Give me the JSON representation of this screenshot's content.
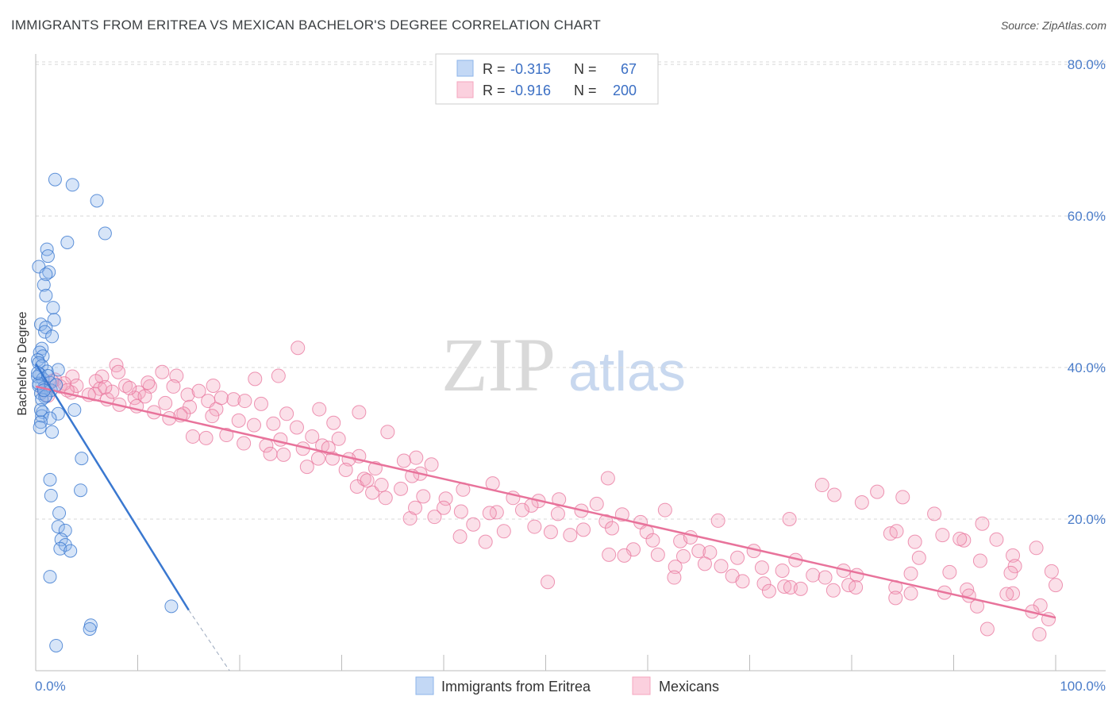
{
  "title": "IMMIGRANTS FROM ERITREA VS MEXICAN BACHELOR'S DEGREE CORRELATION CHART",
  "source": "Source: ZipAtlas.com",
  "watermark": {
    "zip": "ZIP",
    "atlas": "atlas"
  },
  "colors": {
    "blue": "#8db4ea",
    "blue_line": "#3a78d0",
    "pink": "#f4a6bf",
    "pink_line": "#e8739b",
    "tick": "#4a7cc9",
    "grid": "#d8d8d8"
  },
  "legend": {
    "rows": [
      {
        "r_label": "R =",
        "r_value": "-0.315",
        "n_label": "N =",
        "n_value": "67"
      },
      {
        "r_label": "R =",
        "r_value": "-0.916",
        "n_label": "N =",
        "n_value": "200"
      }
    ]
  },
  "chart_data": {
    "type": "scatter",
    "title": "IMMIGRANTS FROM ERITREA VS MEXICAN BACHELOR'S DEGREE CORRELATION CHART",
    "xlabel": "",
    "ylabel": "Bachelor's Degree",
    "xlim": [
      0,
      100
    ],
    "ylim": [
      0,
      82
    ],
    "x_tick_labels": [
      "0.0%",
      "100.0%"
    ],
    "y_ticks": [
      20,
      40,
      60,
      80
    ],
    "y_tick_labels": [
      "20.0%",
      "40.0%",
      "60.0%",
      "80.0%"
    ],
    "grid": true,
    "legend_position": "top-center",
    "series": [
      {
        "name": "Immigrants from Eritrea",
        "color": "#8db4ea",
        "R": -0.315,
        "N": 67,
        "trend": {
          "x": [
            0,
            15
          ],
          "y": [
            40.5,
            8.0
          ]
        },
        "trend_dashed": {
          "x": [
            15,
            19
          ],
          "y": [
            8.0,
            0
          ]
        },
        "points": [
          [
            1.9,
            64.8
          ],
          [
            3.6,
            64.1
          ],
          [
            6.0,
            62.0
          ],
          [
            6.8,
            57.7
          ],
          [
            3.1,
            56.5
          ],
          [
            1.1,
            55.6
          ],
          [
            1.2,
            54.7
          ],
          [
            0.3,
            53.3
          ],
          [
            1.3,
            52.6
          ],
          [
            1.0,
            52.3
          ],
          [
            0.8,
            50.9
          ],
          [
            1.0,
            49.5
          ],
          [
            1.7,
            47.9
          ],
          [
            1.8,
            46.3
          ],
          [
            0.5,
            45.7
          ],
          [
            1.0,
            45.3
          ],
          [
            0.9,
            44.7
          ],
          [
            1.6,
            44.1
          ],
          [
            0.6,
            42.5
          ],
          [
            0.4,
            42.0
          ],
          [
            0.7,
            41.5
          ],
          [
            0.2,
            41.0
          ],
          [
            0.3,
            40.6
          ],
          [
            0.6,
            40.2
          ],
          [
            2.2,
            39.7
          ],
          [
            1.1,
            39.5
          ],
          [
            0.4,
            39.1
          ],
          [
            0.2,
            38.8
          ],
          [
            0.7,
            38.5
          ],
          [
            1.4,
            38.0
          ],
          [
            0.3,
            37.6
          ],
          [
            0.8,
            37.3
          ],
          [
            1.5,
            37.0
          ],
          [
            0.5,
            36.6
          ],
          [
            0.9,
            36.1
          ],
          [
            0.6,
            35.8
          ],
          [
            3.8,
            34.4
          ],
          [
            0.7,
            34.1
          ],
          [
            2.2,
            33.9
          ],
          [
            0.6,
            33.6
          ],
          [
            1.4,
            33.3
          ],
          [
            0.5,
            32.8
          ],
          [
            0.4,
            32.1
          ],
          [
            1.6,
            31.5
          ],
          [
            4.5,
            28.0
          ],
          [
            1.4,
            25.2
          ],
          [
            4.4,
            23.8
          ],
          [
            1.5,
            23.1
          ],
          [
            2.3,
            20.8
          ],
          [
            2.2,
            19.0
          ],
          [
            2.9,
            18.5
          ],
          [
            2.5,
            17.3
          ],
          [
            2.9,
            16.6
          ],
          [
            2.4,
            16.1
          ],
          [
            3.4,
            15.8
          ],
          [
            1.4,
            12.4
          ],
          [
            13.3,
            8.5
          ],
          [
            5.4,
            6.0
          ],
          [
            5.3,
            5.5
          ],
          [
            2.0,
            3.3
          ],
          [
            0.3,
            37.9
          ],
          [
            1.0,
            36.3
          ],
          [
            0.2,
            39.3
          ],
          [
            0.5,
            34.4
          ],
          [
            1.2,
            38.9
          ],
          [
            0.8,
            37.0
          ],
          [
            2.0,
            37.7
          ]
        ]
      },
      {
        "name": "Mexicans",
        "color": "#f4a6bf",
        "R": -0.916,
        "N": 200,
        "trend": {
          "x": [
            0,
            100
          ],
          "y": [
            37.5,
            7.0
          ]
        },
        "points": [
          [
            25.7,
            42.6
          ],
          [
            7.9,
            40.3
          ],
          [
            3.6,
            38.8
          ],
          [
            6.5,
            38.8
          ],
          [
            12.4,
            39.4
          ],
          [
            13.8,
            38.9
          ],
          [
            23.8,
            38.9
          ],
          [
            21.5,
            38.5
          ],
          [
            1.9,
            38.4
          ],
          [
            5.9,
            38.2
          ],
          [
            8.8,
            37.6
          ],
          [
            17.4,
            37.6
          ],
          [
            11.2,
            37.5
          ],
          [
            2.4,
            37.5
          ],
          [
            6.3,
            37.2
          ],
          [
            10.1,
            36.7
          ],
          [
            3.5,
            36.7
          ],
          [
            5.8,
            36.5
          ],
          [
            14.9,
            36.4
          ],
          [
            1.2,
            36.3
          ],
          [
            9.7,
            36.0
          ],
          [
            16.9,
            35.6
          ],
          [
            7.0,
            35.8
          ],
          [
            19.4,
            35.8
          ],
          [
            12.7,
            35.3
          ],
          [
            8.2,
            35.1
          ],
          [
            9.9,
            34.9
          ],
          [
            15.1,
            34.8
          ],
          [
            17.7,
            34.5
          ],
          [
            27.8,
            34.5
          ],
          [
            11.6,
            34.1
          ],
          [
            31.7,
            34.1
          ],
          [
            14.5,
            33.9
          ],
          [
            17.3,
            33.6
          ],
          [
            13.1,
            33.3
          ],
          [
            19.9,
            33.0
          ],
          [
            23.3,
            32.6
          ],
          [
            29.2,
            32.7
          ],
          [
            21.4,
            32.4
          ],
          [
            34.5,
            31.5
          ],
          [
            15.4,
            30.9
          ],
          [
            16.7,
            30.7
          ],
          [
            24.0,
            30.5
          ],
          [
            29.7,
            30.6
          ],
          [
            20.4,
            30.0
          ],
          [
            22.6,
            29.7
          ],
          [
            28.1,
            29.7
          ],
          [
            26.2,
            29.3
          ],
          [
            24.3,
            28.5
          ],
          [
            31.7,
            28.3
          ],
          [
            29.1,
            28.0
          ],
          [
            30.7,
            27.9
          ],
          [
            37.3,
            28.1
          ],
          [
            36.1,
            27.7
          ],
          [
            26.6,
            26.9
          ],
          [
            38.8,
            27.2
          ],
          [
            33.3,
            26.7
          ],
          [
            37.7,
            26.0
          ],
          [
            36.9,
            25.7
          ],
          [
            32.2,
            25.3
          ],
          [
            56.1,
            25.4
          ],
          [
            44.8,
            24.7
          ],
          [
            77.1,
            24.5
          ],
          [
            31.5,
            24.3
          ],
          [
            41.9,
            23.9
          ],
          [
            82.5,
            23.6
          ],
          [
            33.0,
            23.5
          ],
          [
            78.3,
            23.2
          ],
          [
            85.0,
            22.9
          ],
          [
            34.3,
            22.8
          ],
          [
            40.2,
            22.7
          ],
          [
            46.8,
            22.8
          ],
          [
            51.3,
            22.6
          ],
          [
            49.3,
            22.4
          ],
          [
            55.0,
            22.0
          ],
          [
            48.6,
            21.8
          ],
          [
            61.7,
            21.2
          ],
          [
            41.7,
            21.0
          ],
          [
            45.2,
            20.9
          ],
          [
            51.2,
            20.7
          ],
          [
            57.5,
            20.6
          ],
          [
            39.1,
            20.3
          ],
          [
            36.7,
            20.1
          ],
          [
            73.9,
            20.0
          ],
          [
            55.9,
            19.7
          ],
          [
            59.3,
            19.6
          ],
          [
            88.1,
            20.7
          ],
          [
            42.9,
            19.3
          ],
          [
            48.9,
            19.0
          ],
          [
            56.5,
            18.8
          ],
          [
            53.7,
            18.6
          ],
          [
            45.9,
            18.4
          ],
          [
            59.9,
            18.3
          ],
          [
            50.5,
            18.3
          ],
          [
            52.4,
            17.9
          ],
          [
            83.8,
            18.1
          ],
          [
            91.0,
            17.2
          ],
          [
            90.6,
            17.4
          ],
          [
            63.2,
            17.1
          ],
          [
            41.6,
            17.7
          ],
          [
            44.1,
            17.0
          ],
          [
            60.5,
            17.2
          ],
          [
            94.2,
            17.3
          ],
          [
            86.2,
            17.0
          ],
          [
            95.8,
            15.2
          ],
          [
            58.6,
            16.0
          ],
          [
            98.1,
            16.2
          ],
          [
            70.4,
            15.8
          ],
          [
            65.0,
            15.8
          ],
          [
            66.1,
            15.6
          ],
          [
            61.0,
            15.3
          ],
          [
            56.2,
            15.3
          ],
          [
            57.7,
            15.2
          ],
          [
            63.5,
            15.1
          ],
          [
            68.8,
            14.9
          ],
          [
            86.6,
            14.9
          ],
          [
            74.5,
            14.6
          ],
          [
            92.6,
            14.5
          ],
          [
            65.6,
            14.1
          ],
          [
            67.2,
            13.8
          ],
          [
            62.7,
            13.7
          ],
          [
            96.0,
            13.8
          ],
          [
            71.2,
            13.6
          ],
          [
            73.2,
            13.2
          ],
          [
            79.2,
            13.2
          ],
          [
            95.6,
            12.9
          ],
          [
            85.8,
            12.8
          ],
          [
            89.6,
            13.0
          ],
          [
            80.5,
            12.6
          ],
          [
            68.3,
            12.5
          ],
          [
            76.2,
            12.6
          ],
          [
            77.4,
            12.3
          ],
          [
            69.3,
            11.8
          ],
          [
            50.2,
            11.7
          ],
          [
            71.4,
            11.5
          ],
          [
            79.7,
            11.3
          ],
          [
            73.4,
            11.1
          ],
          [
            74.0,
            11.0
          ],
          [
            84.3,
            11.0
          ],
          [
            91.3,
            10.7
          ],
          [
            95.8,
            10.2
          ],
          [
            89.1,
            10.3
          ],
          [
            62.6,
            12.3
          ],
          [
            71.9,
            10.5
          ],
          [
            75.0,
            10.8
          ],
          [
            78.2,
            10.6
          ],
          [
            80.4,
            11.0
          ],
          [
            84.3,
            9.6
          ],
          [
            85.8,
            10.2
          ],
          [
            91.5,
            9.9
          ],
          [
            95.2,
            10.1
          ],
          [
            98.5,
            8.6
          ],
          [
            92.3,
            8.5
          ],
          [
            97.7,
            7.8
          ],
          [
            99.3,
            6.8
          ],
          [
            93.3,
            5.5
          ],
          [
            98.4,
            4.8
          ],
          [
            100.0,
            11.3
          ],
          [
            99.6,
            13.1
          ],
          [
            84.4,
            18.4
          ],
          [
            88.9,
            17.9
          ],
          [
            92.8,
            19.4
          ],
          [
            81.0,
            22.2
          ],
          [
            64.2,
            17.6
          ],
          [
            66.9,
            19.8
          ],
          [
            53.5,
            21.1
          ],
          [
            47.7,
            21.2
          ],
          [
            44.5,
            20.8
          ],
          [
            40.0,
            21.5
          ],
          [
            38.0,
            23.0
          ],
          [
            35.8,
            24.0
          ],
          [
            33.9,
            24.5
          ],
          [
            30.4,
            26.5
          ],
          [
            28.7,
            29.4
          ],
          [
            27.1,
            30.9
          ],
          [
            25.6,
            32.1
          ],
          [
            24.6,
            33.9
          ],
          [
            22.1,
            35.2
          ],
          [
            20.5,
            35.6
          ],
          [
            18.2,
            36.0
          ],
          [
            16.0,
            36.9
          ],
          [
            13.5,
            37.5
          ],
          [
            11.0,
            38.0
          ],
          [
            9.2,
            37.3
          ],
          [
            7.5,
            36.8
          ],
          [
            5.2,
            36.4
          ],
          [
            4.0,
            37.6
          ],
          [
            2.8,
            37.9
          ],
          [
            1.6,
            38.2
          ],
          [
            0.8,
            37.0
          ],
          [
            3.1,
            37.0
          ],
          [
            6.8,
            37.4
          ],
          [
            8.1,
            39.4
          ],
          [
            10.7,
            36.2
          ],
          [
            14.2,
            33.7
          ],
          [
            18.7,
            31.1
          ],
          [
            23.0,
            28.6
          ],
          [
            27.7,
            28.0
          ],
          [
            32.5,
            25.1
          ],
          [
            37.2,
            21.5
          ]
        ]
      }
    ]
  }
}
